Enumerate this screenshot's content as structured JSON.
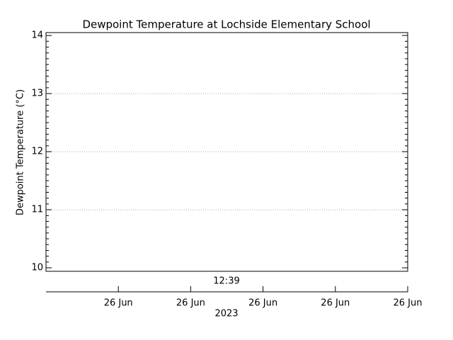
{
  "chart_data": {
    "type": "line",
    "title": "Dewpoint Temperature at Lochside Elementary School",
    "ylabel": "Dewpoint Temperature (°C)",
    "x": [],
    "values": [],
    "color": "#000000",
    "ylim": [
      9.94,
      14.05
    ],
    "yticks": [
      10,
      11,
      12,
      13,
      14
    ],
    "grid": true,
    "annotation": "12:39",
    "time_axis": {
      "ticks": [
        "26 Jun",
        "26 Jun",
        "26 Jun",
        "26 Jun",
        "26 Jun"
      ],
      "label": "2023"
    }
  }
}
